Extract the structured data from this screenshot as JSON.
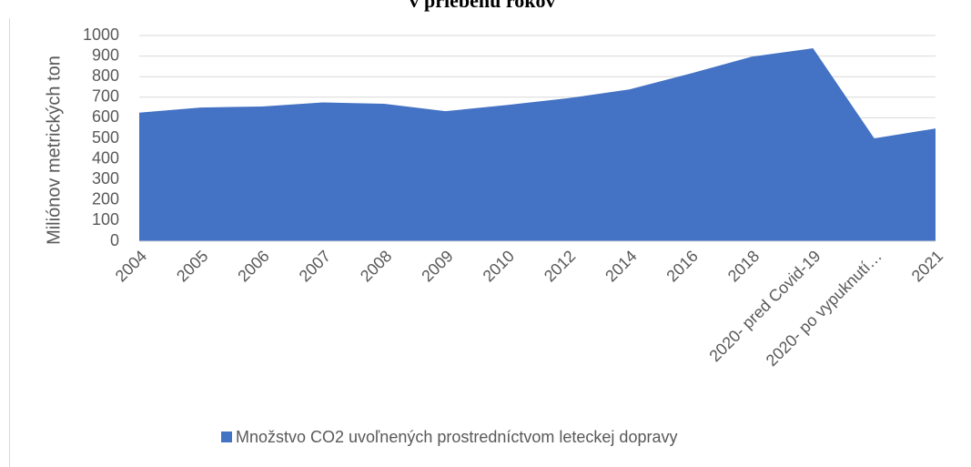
{
  "chart_data": {
    "type": "area",
    "title": "v priebehu rokov",
    "y_label": "Miliónov metrických ton",
    "categories": [
      "2004",
      "2005",
      "2006",
      "2007",
      "2008",
      "2009",
      "2010",
      "2012",
      "2014",
      "2016",
      "2018",
      "2020- pred Covid-19",
      "2020- po vypuknutí…",
      "2021"
    ],
    "series": [
      {
        "name": "Množstvo CO2 uvoľnených prostredníctvom leteckej dopravy",
        "color": "#4472c4",
        "values": [
          625,
          650,
          655,
          675,
          668,
          632,
          662,
          695,
          738,
          815,
          897,
          938,
          500,
          548
        ]
      }
    ],
    "ylim": [
      0,
      1000
    ],
    "yticks": [
      0,
      100,
      200,
      300,
      400,
      500,
      600,
      700,
      800,
      900,
      1000
    ],
    "grid": true,
    "legend": "bottom"
  }
}
